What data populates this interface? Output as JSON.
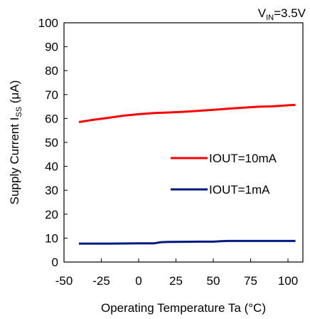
{
  "chart_data": {
    "type": "line",
    "condition": {
      "prefix": "V",
      "sub": "IN",
      "suffix": "=3.5V"
    },
    "xlabel": "Operating Temperature Ta (°C)",
    "ylabel": {
      "prefix": "Supply Current I",
      "sub": "SS",
      "suffix": " (μA)"
    },
    "xlim": [
      -50,
      110
    ],
    "ylim": [
      0,
      100
    ],
    "xticks": [
      -50,
      -25,
      0,
      25,
      50,
      75,
      100
    ],
    "yticks": [
      0,
      10,
      20,
      30,
      40,
      50,
      60,
      70,
      80,
      90,
      100
    ],
    "grid": false,
    "legend_position": "center-right",
    "series": [
      {
        "name": "IOUT=10mA",
        "color": "#ff0000",
        "x": [
          -40,
          -30,
          -20,
          -10,
          0,
          10,
          20,
          30,
          40,
          50,
          60,
          70,
          80,
          90,
          100,
          105
        ],
        "y": [
          58.5,
          59.5,
          60.3,
          61.2,
          61.8,
          62.3,
          62.5,
          62.8,
          63.2,
          63.6,
          64.1,
          64.5,
          64.9,
          65.1,
          65.5,
          65.7
        ]
      },
      {
        "name": "IOUT=1mA",
        "color": "#001a80",
        "x": [
          -40,
          -20,
          0,
          10,
          15,
          20,
          40,
          50,
          55,
          60,
          80,
          100,
          105
        ],
        "y": [
          7.7,
          7.7,
          7.8,
          7.8,
          8.3,
          8.4,
          8.5,
          8.5,
          8.7,
          8.8,
          8.8,
          8.8,
          8.8
        ]
      }
    ]
  }
}
